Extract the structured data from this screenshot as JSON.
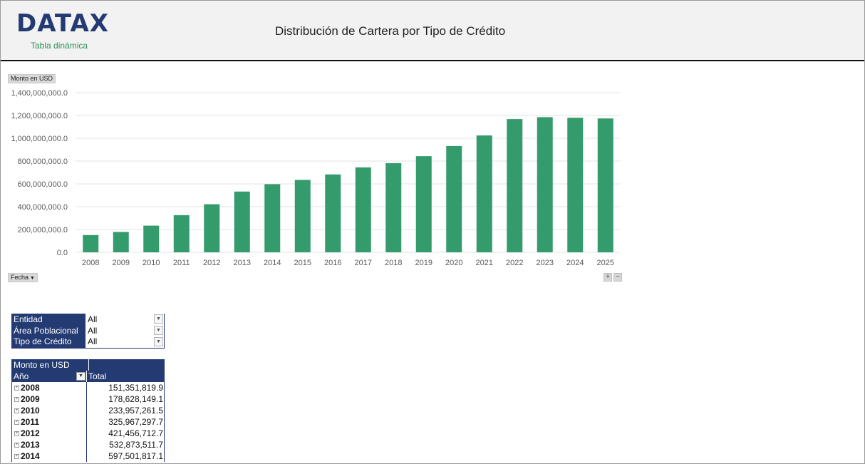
{
  "header": {
    "logo_text": "DATAX",
    "logo_subtitle": "Tabla dinámica",
    "title": "Distribución  de Cartera por Tipo de Crédito"
  },
  "chart_controls": {
    "value_field": "Monto en USD",
    "axis_field": "Fecha",
    "expand_symbol": "+",
    "collapse_symbol": "−"
  },
  "chart_data": {
    "type": "bar",
    "categories": [
      "2008",
      "2009",
      "2010",
      "2011",
      "2012",
      "2013",
      "2014",
      "2015",
      "2016",
      "2017",
      "2018",
      "2019",
      "2020",
      "2021",
      "2022",
      "2023",
      "2024",
      "2025"
    ],
    "values": [
      151351819.9,
      178628149.1,
      233957261.5,
      325967297.7,
      421456712.7,
      532873511.7,
      597501817.1,
      635000000,
      683000000,
      745000000,
      782000000,
      843000000,
      932000000,
      1025000000,
      1168000000,
      1185000000,
      1180000000,
      1174000000
    ],
    "ylim": [
      0,
      1400000000
    ],
    "yticks": [
      0,
      200000000,
      400000000,
      600000000,
      800000000,
      1000000000,
      1200000000,
      1400000000
    ],
    "ytick_labels": [
      "0.0",
      "200,000,000.0",
      "400,000,000.0",
      "600,000,000.0",
      "800,000,000.0",
      "1,000,000,000.0",
      "1,200,000,000.0",
      "1,400,000,000.0"
    ],
    "bar_color": "#339b6c",
    "grid": true
  },
  "filters": [
    {
      "label": "Entidad",
      "value": "All"
    },
    {
      "label": "Área Poblacional",
      "value": "All"
    },
    {
      "label": "Tipo de Crédito",
      "value": "All"
    }
  ],
  "pivot": {
    "value_header": "Monto en USD",
    "row_header": "Año",
    "total_header": "Total",
    "rows": [
      {
        "year": "2008",
        "total": "151,351,819.9"
      },
      {
        "year": "2009",
        "total": "178,628,149.1"
      },
      {
        "year": "2010",
        "total": "233,957,261.5"
      },
      {
        "year": "2011",
        "total": "325,967,297.7"
      },
      {
        "year": "2012",
        "total": "421,456,712.7"
      },
      {
        "year": "2013",
        "total": "532,873,511.7"
      },
      {
        "year": "2014",
        "total": "597,501,817.1"
      }
    ]
  },
  "colors": {
    "brand_navy": "#233a73",
    "brand_green": "#2f8f5b"
  }
}
